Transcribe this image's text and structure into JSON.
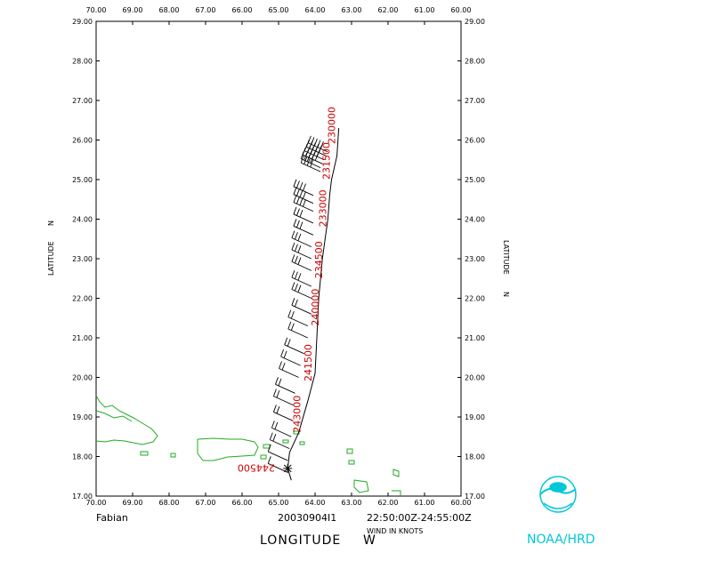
{
  "chart_data": {
    "type": "scatter",
    "storm_name": "Fabian",
    "flight_id": "20030904I1",
    "time_range": "22:50:00Z-24:55:00Z",
    "wind_units_label": "WIND IN KNOTS",
    "xlabel": "LONGITUDE",
    "xlabel_dir": "W",
    "ylabel": "LATITUDE",
    "ylabel_dir": "N",
    "credit": "NOAA/HRD",
    "xlim": [
      70.0,
      60.0
    ],
    "ylim": [
      17.0,
      29.0
    ],
    "x_ticks": [
      "70.00",
      "69.00",
      "68.00",
      "67.00",
      "66.00",
      "65.00",
      "64.00",
      "63.00",
      "62.00",
      "61.00",
      "60.00"
    ],
    "y_ticks": [
      "17.00",
      "18.00",
      "19.00",
      "20.00",
      "21.00",
      "22.00",
      "23.00",
      "24.00",
      "25.00",
      "26.00",
      "27.00",
      "28.00",
      "29.00"
    ],
    "track": {
      "lon": [
        64.65,
        64.75,
        64.7,
        64.45,
        64.2,
        64.0,
        63.95,
        63.9,
        63.8,
        63.65,
        63.6,
        63.55,
        63.4,
        63.35
      ],
      "lat": [
        17.4,
        17.7,
        18.1,
        18.6,
        19.4,
        20.1,
        21.0,
        22.0,
        23.0,
        24.0,
        24.6,
        25.0,
        25.6,
        26.3
      ]
    },
    "time_labels": [
      {
        "text": "244500",
        "lon": 65.1,
        "lat": 17.8
      },
      {
        "text": "243000",
        "lon": 64.4,
        "lat": 18.6
      },
      {
        "text": "241500",
        "lon": 64.1,
        "lat": 19.9
      },
      {
        "text": "240000",
        "lon": 63.9,
        "lat": 21.3
      },
      {
        "text": "234500",
        "lon": 63.8,
        "lat": 22.5
      },
      {
        "text": "233000",
        "lon": 63.7,
        "lat": 23.8
      },
      {
        "text": "231500",
        "lon": 63.6,
        "lat": 25.0
      },
      {
        "text": "230000",
        "lon": 63.45,
        "lat": 25.9
      }
    ],
    "wind_barbs": [
      {
        "lon": 63.65,
        "lat": 25.7,
        "speed": 50
      },
      {
        "lon": 63.7,
        "lat": 25.6,
        "speed": 50
      },
      {
        "lon": 63.75,
        "lat": 25.5,
        "speed": 45
      },
      {
        "lon": 63.8,
        "lat": 25.4,
        "speed": 45
      },
      {
        "lon": 63.85,
        "lat": 25.3,
        "speed": 40
      },
      {
        "lon": 63.85,
        "lat": 25.2,
        "speed": 40
      },
      {
        "lon": 64.05,
        "lat": 24.6,
        "speed": 40
      },
      {
        "lon": 64.05,
        "lat": 24.4,
        "speed": 35
      },
      {
        "lon": 64.05,
        "lat": 24.2,
        "speed": 35
      },
      {
        "lon": 64.05,
        "lat": 23.9,
        "speed": 30
      },
      {
        "lon": 64.05,
        "lat": 23.6,
        "speed": 30
      },
      {
        "lon": 64.1,
        "lat": 23.3,
        "speed": 30
      },
      {
        "lon": 64.1,
        "lat": 23.0,
        "speed": 25
      },
      {
        "lon": 64.1,
        "lat": 22.7,
        "speed": 25
      },
      {
        "lon": 64.1,
        "lat": 22.3,
        "speed": 25
      },
      {
        "lon": 64.1,
        "lat": 22.0,
        "speed": 25
      },
      {
        "lon": 64.1,
        "lat": 21.6,
        "speed": 20
      },
      {
        "lon": 64.2,
        "lat": 21.3,
        "speed": 20
      },
      {
        "lon": 64.2,
        "lat": 21.0,
        "speed": 20
      },
      {
        "lon": 64.3,
        "lat": 20.6,
        "speed": 20
      },
      {
        "lon": 64.4,
        "lat": 20.3,
        "speed": 20
      },
      {
        "lon": 64.45,
        "lat": 20.0,
        "speed": 20
      },
      {
        "lon": 64.55,
        "lat": 19.6,
        "speed": 15
      },
      {
        "lon": 64.6,
        "lat": 19.3,
        "speed": 15
      },
      {
        "lon": 64.6,
        "lat": 18.9,
        "speed": 15
      },
      {
        "lon": 64.65,
        "lat": 18.5,
        "speed": 15
      },
      {
        "lon": 64.7,
        "lat": 18.2,
        "speed": 15
      },
      {
        "lon": 64.75,
        "lat": 17.9,
        "speed": 10
      },
      {
        "lon": 64.75,
        "lat": 17.6,
        "speed": 10
      }
    ],
    "grid": false,
    "legend": "none",
    "colors": {
      "track": "#000000",
      "time_labels": "#cc0000",
      "coastline": "#22aa22",
      "logo": "#00c8d8"
    }
  }
}
